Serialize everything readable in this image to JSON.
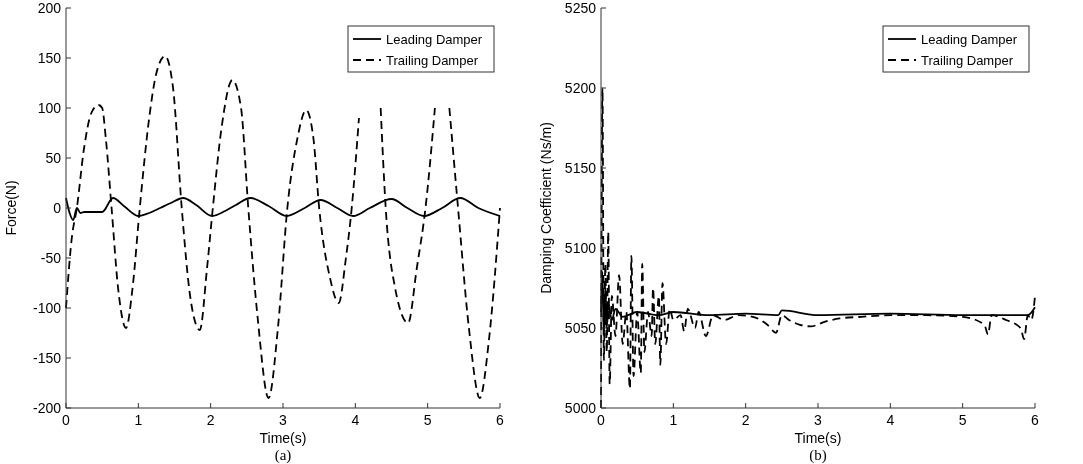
{
  "chart_data": [
    {
      "type": "line",
      "xlabel": "Time(s)",
      "ylabel": "Force(N)",
      "annotations": [
        "(a)"
      ],
      "xlim": [
        0,
        6
      ],
      "ylim": [
        -200,
        200
      ],
      "xticks": [
        0,
        1,
        2,
        3,
        4,
        5,
        6
      ],
      "yticks": [
        -200,
        -150,
        -100,
        -50,
        0,
        50,
        100,
        150,
        200
      ],
      "legend": "top right",
      "grid": false,
      "series": [
        {
          "name": "Leading Damper",
          "color": "#000000",
          "line_style": "solid",
          "x": [
            0,
            0.05,
            0.1,
            0.15,
            0.2,
            0.25,
            0.3,
            0.4,
            0.5,
            0.65,
            0.8,
            1.0,
            1.15,
            1.3,
            1.45,
            1.62,
            1.8,
            2.02,
            2.2,
            2.35,
            2.55,
            2.8,
            3.05,
            3.3,
            3.52,
            3.75,
            3.97,
            4.2,
            4.5,
            4.72,
            4.95,
            5.2,
            5.45,
            5.7,
            6.0
          ],
          "values": [
            10,
            -5,
            -12,
            0,
            -5,
            -4,
            -4,
            -4,
            -4,
            10,
            2,
            -8,
            -5,
            0,
            5,
            10,
            3,
            -8,
            -3,
            3,
            10,
            2,
            -8,
            0,
            8,
            0,
            -8,
            0,
            9,
            0,
            -8,
            0,
            10,
            0,
            -8
          ]
        },
        {
          "name": "Trailing Damper",
          "color": "#000000",
          "line_style": "dashed",
          "x": [
            0,
            0.08,
            0.15,
            0.25,
            0.35,
            0.45,
            0.5,
            0.55,
            0.63,
            0.72,
            0.83,
            0.92,
            1.02,
            1.15,
            1.25,
            1.37,
            1.48,
            1.6,
            1.72,
            1.85,
            1.95,
            2.03,
            2.15,
            2.3,
            2.42,
            2.52,
            2.65,
            2.8,
            2.93,
            3.06,
            3.2,
            3.32,
            3.42,
            3.5,
            3.65,
            3.77,
            3.87,
            3.95,
            4.05,
            4.1,
            4.2,
            4.27,
            4.35,
            4.42,
            4.55,
            4.73,
            4.85,
            4.97,
            5.1,
            5.2,
            5.3,
            5.42,
            5.57,
            5.72,
            5.85,
            6.0
          ],
          "values": [
            -100,
            -30,
            0,
            60,
            95,
            103,
            100,
            70,
            0,
            -80,
            -120,
            -80,
            0,
            90,
            135,
            152,
            120,
            0,
            -90,
            -122,
            -60,
            0,
            80,
            128,
            100,
            0,
            -110,
            -190,
            -120,
            0,
            70,
            98,
            70,
            0,
            -70,
            -95,
            -50,
            0,
            90,
            null,
            null,
            null,
            100,
            0,
            -80,
            -115,
            -60,
            0,
            100,
            null,
            100,
            0,
            -120,
            -190,
            -130,
            0
          ]
        }
      ]
    },
    {
      "type": "line",
      "xlabel": "Time(s)",
      "ylabel": "Damping Coefficient (Ns/m)",
      "annotations": [
        "(b)"
      ],
      "xlim": [
        0,
        6
      ],
      "ylim": [
        5000,
        5250
      ],
      "xticks": [
        0,
        1,
        2,
        3,
        4,
        5,
        6
      ],
      "yticks": [
        5000,
        5050,
        5100,
        5150,
        5200,
        5250
      ],
      "legend": "top right",
      "grid": false,
      "series": [
        {
          "name": "Leading Damper",
          "color": "#000000",
          "line_style": "solid",
          "x": [
            0,
            0.02,
            0.04,
            0.06,
            0.08,
            0.1,
            0.15,
            0.2,
            0.3,
            0.5,
            0.8,
            1.0,
            1.5,
            2.0,
            2.45,
            2.5,
            3,
            4,
            5,
            5.9,
            6
          ],
          "values": [
            5060,
            5085,
            5045,
            5075,
            5050,
            5065,
            5055,
            5062,
            5057,
            5060,
            5058,
            5060,
            5058,
            5059,
            5058,
            5061,
            5058,
            5059,
            5058,
            5058,
            5063
          ]
        },
        {
          "name": "Trailing Damper",
          "color": "#000000",
          "line_style": "dashed",
          "x": [
            0,
            0.02,
            0.04,
            0.06,
            0.08,
            0.1,
            0.12,
            0.15,
            0.2,
            0.25,
            0.3,
            0.35,
            0.4,
            0.42,
            0.45,
            0.5,
            0.55,
            0.57,
            0.6,
            0.65,
            0.7,
            0.72,
            0.75,
            0.8,
            0.82,
            0.85,
            0.9,
            0.95,
            1.0,
            1.1,
            1.15,
            1.2,
            1.3,
            1.35,
            1.45,
            1.55,
            1.7,
            1.9,
            2.1,
            2.3,
            2.42,
            2.5,
            2.6,
            2.75,
            2.9,
            3.1,
            3.3,
            3.6,
            4.0,
            4.5,
            5.0,
            5.3,
            5.35,
            5.4,
            5.6,
            5.8,
            5.85,
            5.9,
            5.95,
            6.0
          ],
          "values": [
            5000,
            5200,
            5030,
            5090,
            5035,
            5110,
            5015,
            5070,
            5045,
            5083,
            5040,
            5060,
            5012,
            5095,
            5020,
            5060,
            5022,
            5090,
            5035,
            5060,
            5045,
            5075,
            5040,
            5070,
            5027,
            5078,
            5040,
            5062,
            5055,
            5058,
            5048,
            5062,
            5050,
            5060,
            5045,
            5058,
            5055,
            5058,
            5057,
            5052,
            5047,
            5058,
            5055,
            5052,
            5051,
            5054,
            5056,
            5057,
            5058,
            5058,
            5057,
            5052,
            5046,
            5058,
            5055,
            5050,
            5043,
            5058,
            5055,
            5070
          ]
        }
      ]
    }
  ]
}
